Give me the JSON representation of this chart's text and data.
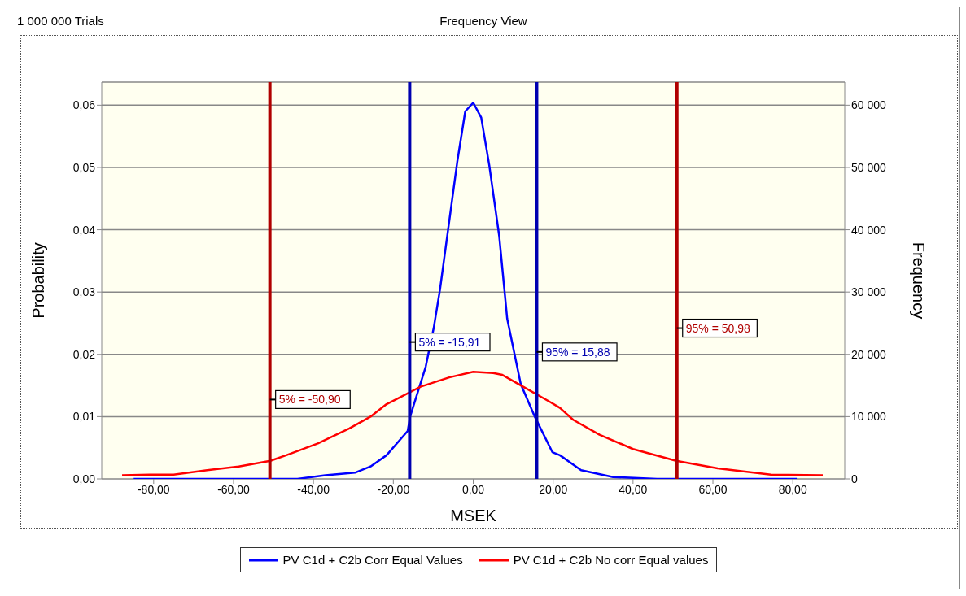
{
  "chart_data": {
    "type": "line",
    "title": "Frequency View",
    "annotations": [
      "1 000 000 Trials"
    ],
    "xlabel": "MSEK",
    "ylabel": "Probability",
    "y2label": "Frequency",
    "xlim": [
      -93,
      93
    ],
    "xticks": [
      {
        "value": -80,
        "label": "-80,00"
      },
      {
        "value": -60,
        "label": "-60,00"
      },
      {
        "value": -40,
        "label": "-40,00"
      },
      {
        "value": -20,
        "label": "-20,00"
      },
      {
        "value": 0,
        "label": "0,00"
      },
      {
        "value": 20,
        "label": "20,00"
      },
      {
        "value": 40,
        "label": "40,00"
      },
      {
        "value": 60,
        "label": "60,00"
      },
      {
        "value": 80,
        "label": "80,00"
      }
    ],
    "ylim": [
      0,
      0.0637
    ],
    "yticks": [
      {
        "value": 0,
        "label": "0,00"
      },
      {
        "value": 0.01,
        "label": "0,01"
      },
      {
        "value": 0.02,
        "label": "0,02"
      },
      {
        "value": 0.03,
        "label": "0,03"
      },
      {
        "value": 0.04,
        "label": "0,04"
      },
      {
        "value": 0.05,
        "label": "0,05"
      },
      {
        "value": 0.06,
        "label": "0,06"
      }
    ],
    "y2lim": [
      0,
      63700
    ],
    "y2ticks": [
      0,
      {
        "value": 10000,
        "label": "10 000"
      },
      {
        "value": 20000,
        "label": "20 000"
      },
      {
        "value": 30000,
        "label": "30 000"
      },
      {
        "value": 40000,
        "label": "40 000"
      },
      {
        "value": 50000,
        "label": "50 000"
      },
      {
        "value": 60000,
        "label": "60 000"
      }
    ],
    "grid": "y",
    "legend": "bottom",
    "marker": "none",
    "line_style": "solid",
    "series": [
      {
        "name": "PV C1d + C2b Corr Equal Values",
        "color": "#0000ff",
        "x": [
          -85,
          -78,
          -60,
          -44,
          -37,
          -29.6,
          -25.7,
          -21.7,
          -16.4,
          -15.8,
          -11.9,
          -9.9,
          -8.3,
          -6.3,
          -4,
          -2,
          0,
          2,
          4,
          6.5,
          8.5,
          11.9,
          15.4,
          19.8,
          21.7,
          25.7,
          27,
          35,
          46,
          60,
          81
        ],
        "values": [
          0,
          0,
          0,
          0,
          0.0006,
          0.001,
          0.002,
          0.0038,
          0.0077,
          0.01,
          0.018,
          0.0242,
          0.0305,
          0.04,
          0.0509,
          0.059,
          0.0604,
          0.058,
          0.0504,
          0.039,
          0.0257,
          0.0152,
          0.01,
          0.0043,
          0.0038,
          0.002,
          0.0014,
          0.0003,
          0,
          0,
          0
        ]
      },
      {
        "name": "PV C1d + C2b No corr Equal values",
        "color": "#ff0000",
        "x": [
          -87.9,
          -81,
          -75,
          -66.6,
          -58.7,
          -50.8,
          -46.8,
          -38.9,
          -31,
          -25.7,
          -21.7,
          -19.2,
          -13.2,
          -6,
          0,
          5,
          7.3,
          12.5,
          19.1,
          21.7,
          25,
          31.6,
          40,
          50.8,
          61.2,
          74.5,
          87.5
        ],
        "values": [
          0.0006,
          0.0007,
          0.0007,
          0.0014,
          0.002,
          0.0029,
          0.0038,
          0.0057,
          0.0081,
          0.01,
          0.012,
          0.0128,
          0.0148,
          0.0163,
          0.0172,
          0.017,
          0.0167,
          0.0148,
          0.0124,
          0.0114,
          0.0095,
          0.0071,
          0.0048,
          0.0029,
          0.0017,
          0.0007,
          0.0006
        ]
      }
    ],
    "ref_lines": [
      {
        "axis": "x",
        "value": -50.9,
        "label": "5% = -50,90",
        "color": "#b00000"
      },
      {
        "axis": "x",
        "value": -15.91,
        "label": "5% = -15,91",
        "color": "#0000b0"
      },
      {
        "axis": "x",
        "value": 15.88,
        "label": "95% = 15,88",
        "color": "#0000b0"
      },
      {
        "axis": "x",
        "value": 50.98,
        "label": "95% = 50,98",
        "color": "#b00000"
      }
    ]
  }
}
